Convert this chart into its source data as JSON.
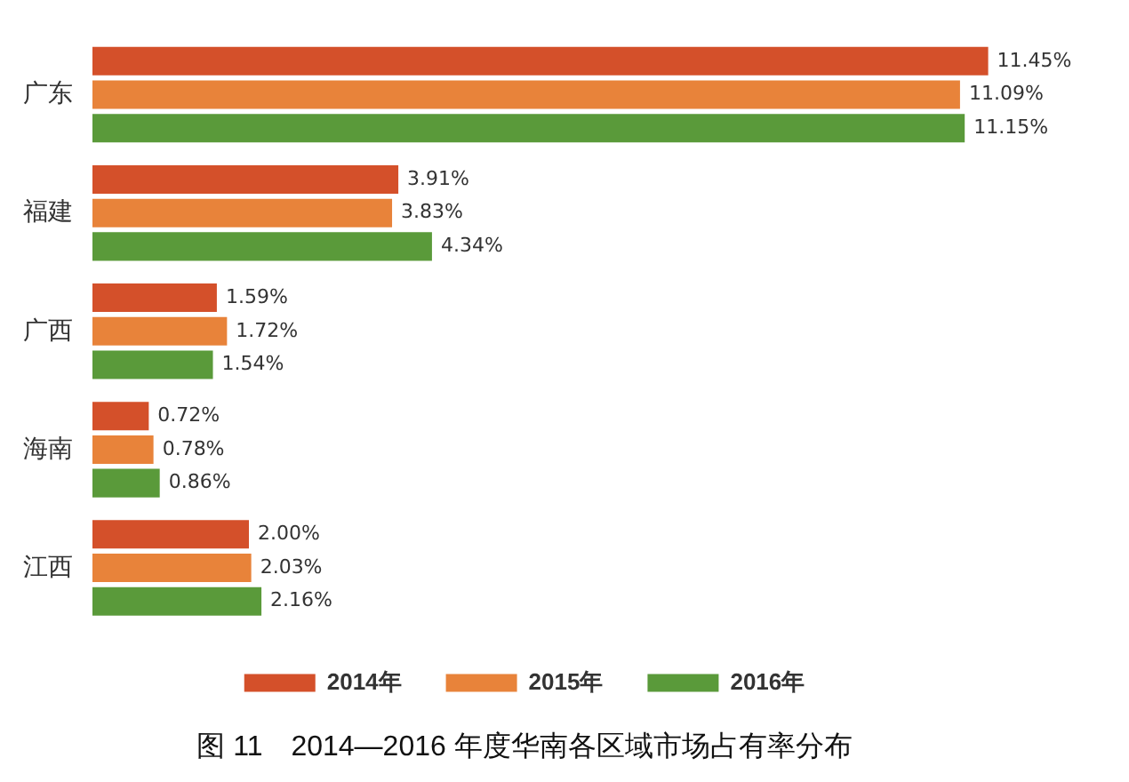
{
  "chart_data": {
    "type": "bar",
    "orientation": "horizontal",
    "title": "图 11　2014—2016 年度华南各区域市场占有率分布",
    "categories": [
      "广东",
      "福建",
      "广西",
      "海南",
      "江西"
    ],
    "series": [
      {
        "name": "2014年",
        "color": "#d4502a",
        "values": [
          11.45,
          3.91,
          1.59,
          0.72,
          2.0
        ],
        "value_labels": [
          "11.45%",
          "3.91%",
          "1.59%",
          "0.72%",
          "2.00%"
        ]
      },
      {
        "name": "2015年",
        "color": "#e8833a",
        "values": [
          11.09,
          3.83,
          1.72,
          0.78,
          2.03
        ],
        "value_labels": [
          "11.09%",
          "3.83%",
          "1.72%",
          "0.78%",
          "2.03%"
        ]
      },
      {
        "name": "2016年",
        "color": "#5a9a3a",
        "values": [
          11.15,
          4.34,
          1.54,
          0.86,
          2.16
        ],
        "value_labels": [
          "11.15%",
          "4.34%",
          "1.54%",
          "0.86%",
          "2.16%"
        ]
      }
    ],
    "legend": "bottom"
  }
}
